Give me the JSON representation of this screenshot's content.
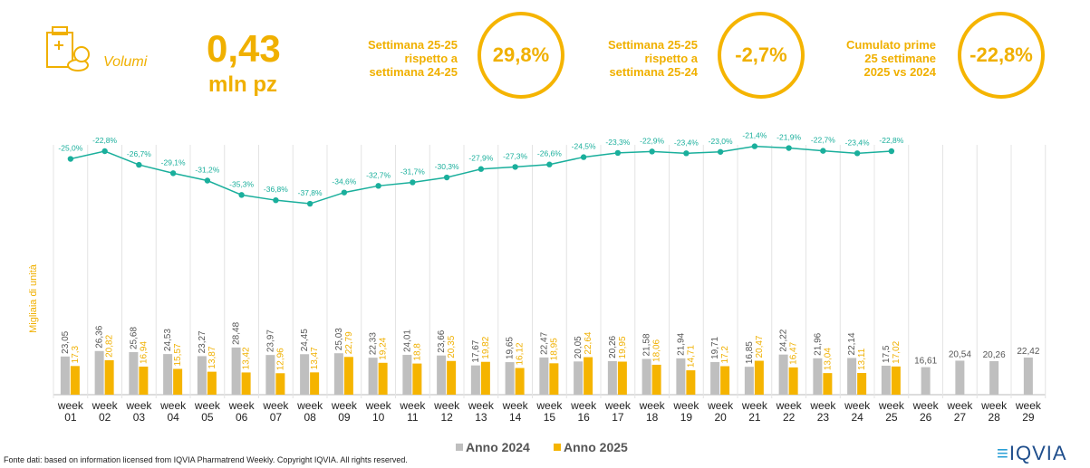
{
  "header": {
    "icon_label": "Volumi",
    "value": "0,43",
    "unit": "mln pz"
  },
  "kpis": [
    {
      "label_lines": [
        "Settimana 25-25",
        "rispetto a",
        "settimana 24-25"
      ],
      "value": "29,8%"
    },
    {
      "label_lines": [
        "Settimana 25-25",
        "rispetto a",
        "settimana 25-24"
      ],
      "value": "-2,7%"
    },
    {
      "label_lines": [
        "Cumulato prime",
        "25 settimane",
        "2025 vs 2024"
      ],
      "value": "-22,8%"
    }
  ],
  "chart_data": {
    "type": "bar",
    "y_axis_label": "Migliaia di unità",
    "categories": [
      "week 01",
      "week 02",
      "week 03",
      "week 04",
      "week 05",
      "week 06",
      "week 07",
      "week 08",
      "week 09",
      "week 10",
      "week 11",
      "week 12",
      "week 13",
      "week 14",
      "week 15",
      "week 16",
      "week 17",
      "week 18",
      "week 19",
      "week 20",
      "week 21",
      "week 22",
      "week 23",
      "week 24",
      "week 25",
      "week 26",
      "week 27",
      "week 28",
      "week 29"
    ],
    "series": [
      {
        "name": "Anno 2024",
        "color": "#bfbfbf",
        "values": [
          23.05,
          26.36,
          25.68,
          24.53,
          23.27,
          28.48,
          23.97,
          24.45,
          25.03,
          22.33,
          24.01,
          23.66,
          17.67,
          19.65,
          22.47,
          20.05,
          20.26,
          21.58,
          21.94,
          19.71,
          16.85,
          24.22,
          21.96,
          22.14,
          17.5,
          16.61,
          20.54,
          20.26,
          22.42
        ],
        "value_labels": [
          "23,05",
          "26,36",
          "25,68",
          "24,53",
          "23,27",
          "28,48",
          "23,97",
          "24,45",
          "25,03",
          "22,33",
          "24,01",
          "23,66",
          "17,67",
          "19,65",
          "22,47",
          "20,05",
          "20,26",
          "21,58",
          "21,94",
          "19,71",
          "16,85",
          "24,22",
          "21,96",
          "22,14",
          "17,5",
          "16,61",
          "20,54",
          "20,26",
          "22,42"
        ]
      },
      {
        "name": "Anno 2025",
        "color": "#f5b400",
        "values": [
          17.3,
          20.82,
          16.94,
          15.57,
          13.87,
          13.42,
          12.96,
          13.47,
          22.79,
          19.24,
          18.8,
          20.35,
          19.82,
          16.12,
          18.95,
          22.64,
          19.95,
          18.06,
          14.71,
          17.2,
          20.47,
          16.47,
          13.04,
          13.11,
          17.02,
          null,
          null,
          null,
          null
        ],
        "value_labels": [
          "17,3",
          "20,82",
          "16,94",
          "15,57",
          "13,87",
          "13,42",
          "12,96",
          "13,47",
          "22,79",
          "19,24",
          "18,8",
          "20,35",
          "19,82",
          "16,12",
          "18,95",
          "22,64",
          "19,95",
          "18,06",
          "14,71",
          "17,2",
          "20,47",
          "16,47",
          "13,04",
          "13,11",
          "17,02",
          null,
          null,
          null,
          null
        ]
      }
    ],
    "change_line": {
      "color": "#1aaf9c",
      "values": [
        -25.0,
        -22.8,
        -26.7,
        -29.1,
        -31.2,
        -35.3,
        -36.8,
        -37.8,
        -34.6,
        -32.7,
        -31.7,
        -30.3,
        -27.9,
        -27.3,
        -26.6,
        -24.5,
        -23.3,
        -22.9,
        -23.4,
        -23.0,
        -21.4,
        -21.9,
        -22.7,
        -23.4,
        -22.8,
        null,
        null,
        null,
        null
      ],
      "value_labels": [
        "-25,0%",
        "-22,8%",
        "-26,7%",
        "-29,1%",
        "-31,2%",
        "-35,3%",
        "-36,8%",
        "-37,8%",
        "-34,6%",
        "-32,7%",
        "-31,7%",
        "-30,3%",
        "-27,9%",
        "-27,3%",
        "-26,6%",
        "-24,5%",
        "-23,3%",
        "-22,9%",
        "-23,4%",
        "-23,0%",
        "-21,4%",
        "-21,9%",
        "-22,7%",
        "-23,4%",
        "-22,8%",
        null,
        null,
        null,
        null
      ]
    }
  },
  "footer": {
    "source": "Fonte dati: based on information licensed from IQVIA Pharmatrend Weekly. Copyright IQVIA. All rights reserved.",
    "logo": "IQVIA"
  }
}
